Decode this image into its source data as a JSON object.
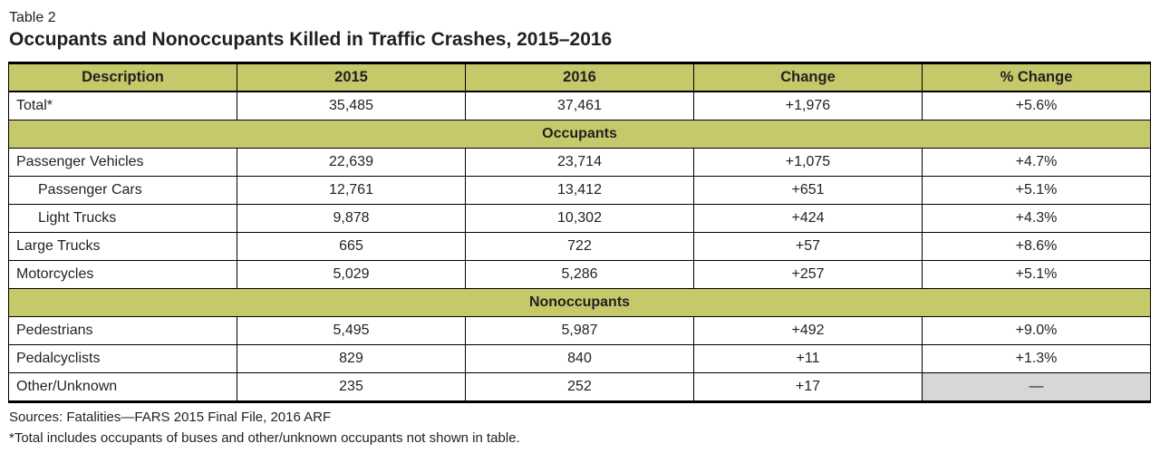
{
  "page": {
    "table_label": "Table 2",
    "title": "Occupants and Nonoccupants Killed in Traffic Crashes, 2015–2016",
    "sources": "Sources: Fatalities—FARS 2015 Final File, 2016 ARF",
    "footnote": "*Total includes occupants of buses and other/unknown occupants not shown in table."
  },
  "table": {
    "columns": [
      "Description",
      "2015",
      "2016",
      "Change",
      "% Change"
    ],
    "rows": [
      {
        "type": "data",
        "indent": false,
        "cells": [
          "Total*",
          "35,485",
          "37,461",
          "+1,976",
          "+5.6%"
        ],
        "gray_cells": []
      },
      {
        "type": "section",
        "label": "Occupants"
      },
      {
        "type": "data",
        "indent": false,
        "cells": [
          "Passenger Vehicles",
          "22,639",
          "23,714",
          "+1,075",
          "+4.7%"
        ],
        "gray_cells": []
      },
      {
        "type": "data",
        "indent": true,
        "cells": [
          "Passenger Cars",
          "12,761",
          "13,412",
          "+651",
          "+5.1%"
        ],
        "gray_cells": []
      },
      {
        "type": "data",
        "indent": true,
        "cells": [
          "Light Trucks",
          "9,878",
          "10,302",
          "+424",
          "+4.3%"
        ],
        "gray_cells": []
      },
      {
        "type": "data",
        "indent": false,
        "cells": [
          "Large Trucks",
          "665",
          "722",
          "+57",
          "+8.6%"
        ],
        "gray_cells": []
      },
      {
        "type": "data",
        "indent": false,
        "cells": [
          "Motorcycles",
          "5,029",
          "5,286",
          "+257",
          "+5.1%"
        ],
        "gray_cells": []
      },
      {
        "type": "section",
        "label": "Nonoccupants"
      },
      {
        "type": "data",
        "indent": false,
        "cells": [
          "Pedestrians",
          "5,495",
          "5,987",
          "+492",
          "+9.0%"
        ],
        "gray_cells": []
      },
      {
        "type": "data",
        "indent": false,
        "cells": [
          "Pedalcyclists",
          "829",
          "840",
          "+11",
          "+1.3%"
        ],
        "gray_cells": []
      },
      {
        "type": "data",
        "indent": false,
        "cells": [
          "Other/Unknown",
          "235",
          "252",
          "+17",
          "—"
        ],
        "gray_cells": [
          4
        ]
      }
    ],
    "colors": {
      "header_bg": "#c6c96a",
      "section_bg": "#c6c96a",
      "gray_cell_bg": "#d7d7d7",
      "border": "#000000"
    }
  }
}
